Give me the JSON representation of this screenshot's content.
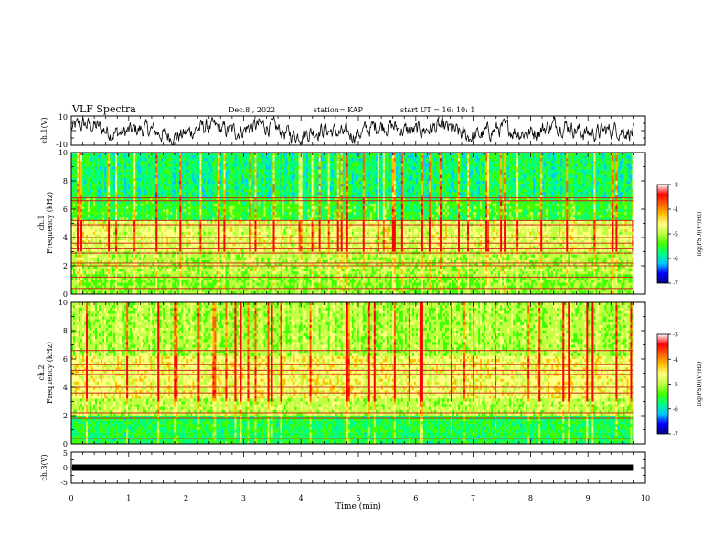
{
  "header": {
    "title": "VLF Spectra",
    "date": "Dec.8 , 2022",
    "station": "station= KAP",
    "start": "start UT =  16: 10: 1"
  },
  "chart_data": [
    {
      "type": "line",
      "name": "ch1-waveform",
      "ylabel": "ch.1(V)",
      "ylim": [
        -10,
        10
      ],
      "yticks": [
        "10",
        "-10"
      ],
      "xlim": [
        0,
        10
      ],
      "x_extent_min": 9.8
    },
    {
      "type": "heatmap",
      "name": "ch1-spectrogram",
      "ylabel_line1": "ch.1",
      "ylabel_line2": "Frequency (kHz)",
      "ylim": [
        0,
        10
      ],
      "yticks": [
        "0",
        "2",
        "4",
        "6",
        "8",
        "10"
      ],
      "xlim": [
        0,
        10
      ],
      "x_extent_min": 9.8,
      "colorbar": {
        "label": "log(PSD)(V²/Hz)",
        "range": [
          -7,
          -3
        ],
        "ticks": [
          "-3",
          "-4",
          "-5",
          "-6",
          "-7"
        ]
      },
      "persistent_lines_khz": [
        0.4,
        1.2,
        2.0,
        2.2,
        2.9,
        3.2,
        3.6,
        4.0,
        4.9,
        5.2,
        6.6,
        6.8
      ]
    },
    {
      "type": "heatmap",
      "name": "ch2-spectrogram",
      "ylabel_line1": "ch.2",
      "ylabel_line2": "Frequency (kHz)",
      "ylim": [
        0,
        10
      ],
      "yticks": [
        "0",
        "2",
        "4",
        "6",
        "8",
        "10"
      ],
      "xlim": [
        0,
        10
      ],
      "x_extent_min": 9.8,
      "colorbar": {
        "label": "log(PSD)(V²/Hz)",
        "range": [
          -7,
          -3
        ],
        "ticks": [
          "-3",
          "-4",
          "-5",
          "-6",
          "-7"
        ]
      },
      "persistent_lines_khz": [
        0.4,
        1.8,
        2.2,
        3.6,
        4.0,
        4.9,
        5.2,
        5.6,
        6.6
      ]
    },
    {
      "type": "line",
      "name": "ch3-waveform",
      "ylabel": "ch.3(V)",
      "ylim": [
        -5,
        5
      ],
      "yticks": [
        "5",
        "0",
        "-5"
      ],
      "xlim": [
        0,
        10
      ],
      "x_extent_min": 9.8,
      "level_v": 0
    }
  ],
  "xaxis": {
    "label": "Time (min)",
    "ticks": [
      "0",
      "1",
      "2",
      "3",
      "4",
      "5",
      "6",
      "7",
      "8",
      "9",
      "10"
    ]
  },
  "colors": {
    "colormap": [
      "#000080",
      "#0000ff",
      "#00c8ff",
      "#00ff80",
      "#40ff00",
      "#c0ff40",
      "#ffff80",
      "#ffc000",
      "#ff6000",
      "#ff0000",
      "#ffffff"
    ]
  }
}
